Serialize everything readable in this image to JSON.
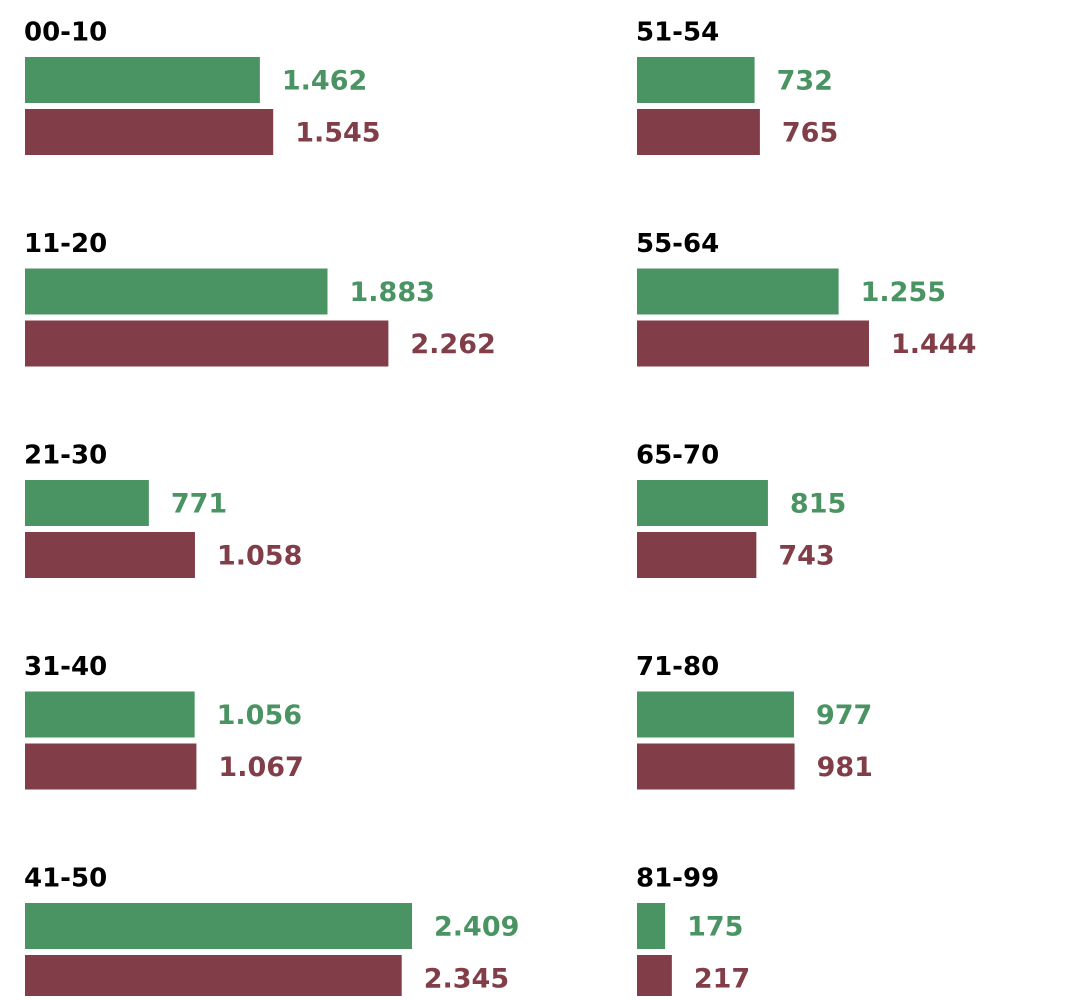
{
  "chart_data": {
    "type": "bar",
    "categories": [
      "00-10",
      "11-20",
      "21-30",
      "31-40",
      "41-50",
      "51-54",
      "55-64",
      "65-70",
      "71-80",
      "81-99"
    ],
    "series": [
      {
        "color": "#4a9362",
        "values": [
          1462,
          1883,
          771,
          1056,
          2409,
          732,
          1255,
          815,
          977,
          175
        ],
        "value_labels": [
          "1.462",
          "1.883",
          "771",
          "1.056",
          "2.409",
          "732",
          "1.255",
          "815",
          "977",
          "175"
        ]
      },
      {
        "color": "#823e48",
        "values": [
          1545,
          2262,
          1058,
          1067,
          2345,
          765,
          1444,
          743,
          981,
          217
        ],
        "value_labels": [
          "1.545",
          "2.262",
          "1.058",
          "1.067",
          "2.345",
          "765",
          "1.444",
          "743",
          "981",
          "217"
        ]
      }
    ]
  }
}
